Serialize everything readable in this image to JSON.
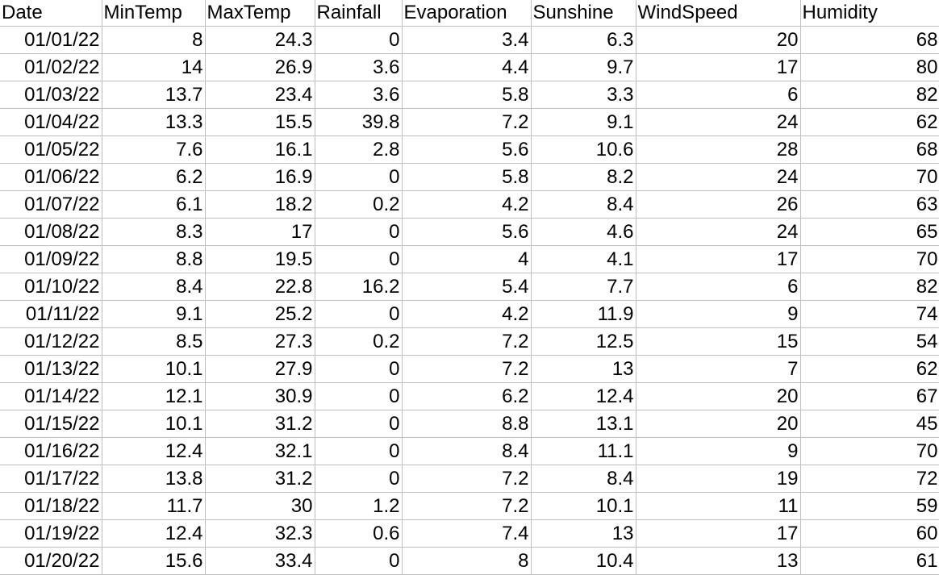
{
  "sheet": {
    "columns": [
      "Date",
      "MinTemp",
      "MaxTemp",
      "Rainfall",
      "Evaporation",
      "Sunshine",
      "WindSpeed",
      "Humidity"
    ],
    "rows": [
      [
        "01/01/22",
        "8",
        "24.3",
        "0",
        "3.4",
        "6.3",
        "20",
        "68"
      ],
      [
        "01/02/22",
        "14",
        "26.9",
        "3.6",
        "4.4",
        "9.7",
        "17",
        "80"
      ],
      [
        "01/03/22",
        "13.7",
        "23.4",
        "3.6",
        "5.8",
        "3.3",
        "6",
        "82"
      ],
      [
        "01/04/22",
        "13.3",
        "15.5",
        "39.8",
        "7.2",
        "9.1",
        "24",
        "62"
      ],
      [
        "01/05/22",
        "7.6",
        "16.1",
        "2.8",
        "5.6",
        "10.6",
        "28",
        "68"
      ],
      [
        "01/06/22",
        "6.2",
        "16.9",
        "0",
        "5.8",
        "8.2",
        "24",
        "70"
      ],
      [
        "01/07/22",
        "6.1",
        "18.2",
        "0.2",
        "4.2",
        "8.4",
        "26",
        "63"
      ],
      [
        "01/08/22",
        "8.3",
        "17",
        "0",
        "5.6",
        "4.6",
        "24",
        "65"
      ],
      [
        "01/09/22",
        "8.8",
        "19.5",
        "0",
        "4",
        "4.1",
        "17",
        "70"
      ],
      [
        "01/10/22",
        "8.4",
        "22.8",
        "16.2",
        "5.4",
        "7.7",
        "6",
        "82"
      ],
      [
        "01/11/22",
        "9.1",
        "25.2",
        "0",
        "4.2",
        "11.9",
        "9",
        "74"
      ],
      [
        "01/12/22",
        "8.5",
        "27.3",
        "0.2",
        "7.2",
        "12.5",
        "15",
        "54"
      ],
      [
        "01/13/22",
        "10.1",
        "27.9",
        "0",
        "7.2",
        "13",
        "7",
        "62"
      ],
      [
        "01/14/22",
        "12.1",
        "30.9",
        "0",
        "6.2",
        "12.4",
        "20",
        "67"
      ],
      [
        "01/15/22",
        "10.1",
        "31.2",
        "0",
        "8.8",
        "13.1",
        "20",
        "45"
      ],
      [
        "01/16/22",
        "12.4",
        "32.1",
        "0",
        "8.4",
        "11.1",
        "9",
        "70"
      ],
      [
        "01/17/22",
        "13.8",
        "31.2",
        "0",
        "7.2",
        "8.4",
        "19",
        "72"
      ],
      [
        "01/18/22",
        "11.7",
        "30",
        "1.2",
        "7.2",
        "10.1",
        "11",
        "59"
      ],
      [
        "01/19/22",
        "12.4",
        "32.3",
        "0.6",
        "7.4",
        "13",
        "17",
        "60"
      ],
      [
        "01/20/22",
        "15.6",
        "33.4",
        "0",
        "8",
        "10.4",
        "13",
        "61"
      ]
    ]
  }
}
